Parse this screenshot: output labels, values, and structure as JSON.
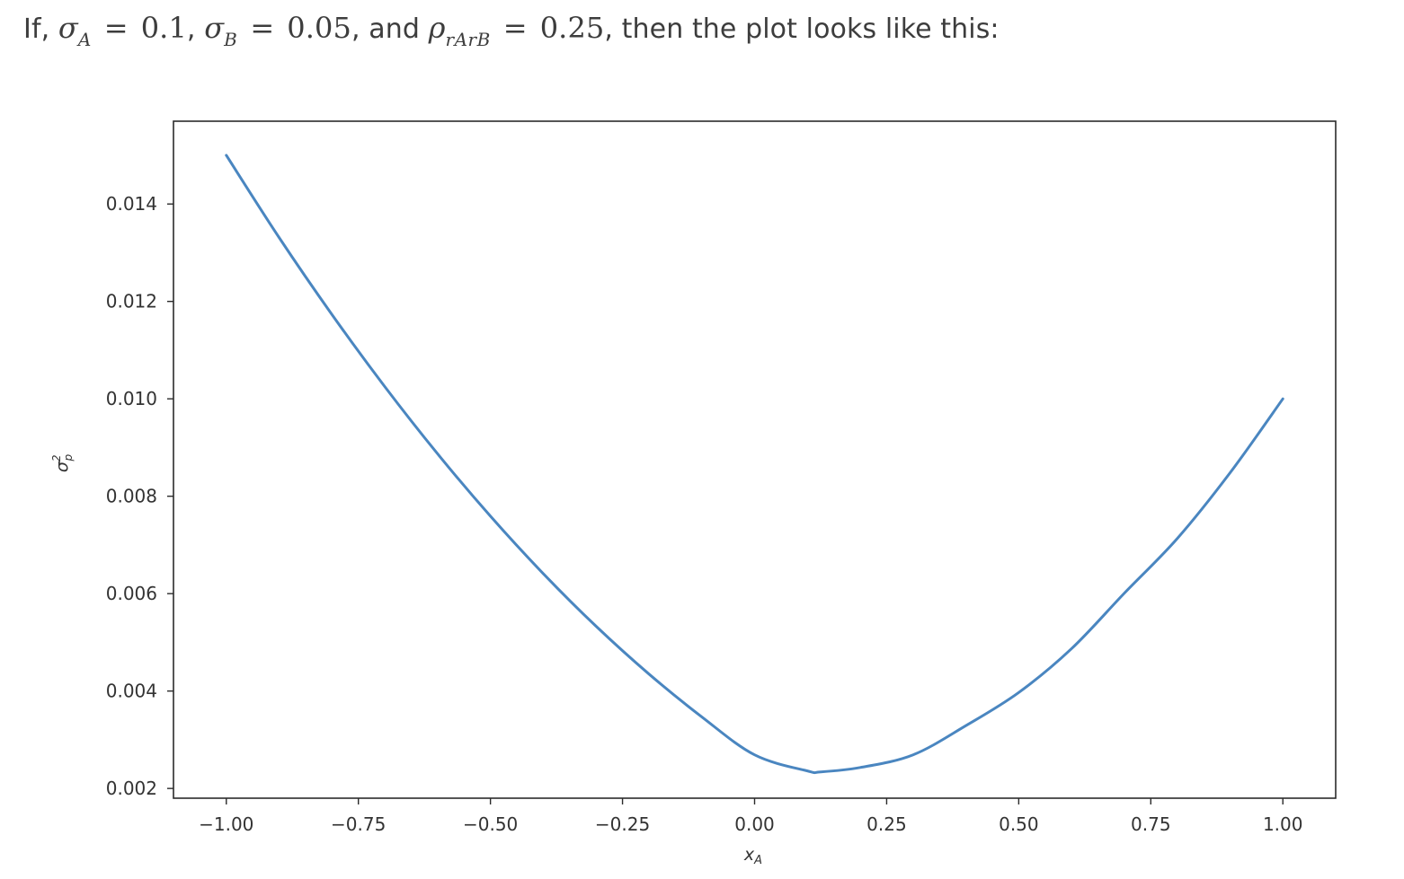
{
  "intro": {
    "lead": "If,",
    "sigma_a": {
      "symbol": "σ",
      "subscript": "A",
      "value": "0.1"
    },
    "sigma_b": {
      "symbol": "σ",
      "subscript": "B",
      "value": "0.05"
    },
    "connector": "and",
    "rho": {
      "symbol": "ρ",
      "subscript": "rArB",
      "value": "0.25"
    },
    "trail": "then the plot looks like this:",
    "separator": ",",
    "equals": "="
  },
  "chart_data": {
    "type": "line",
    "title": "",
    "xlabel": "x_A",
    "ylabel": "σ²_p",
    "xlabel_display": "xA",
    "ylabel_display": "σ²p",
    "xlim": [
      -1.1,
      1.1
    ],
    "ylim": [
      0.0018,
      0.0157
    ],
    "xticks": [
      -1.0,
      -0.75,
      -0.5,
      -0.25,
      0.0,
      0.25,
      0.5,
      0.75,
      1.0
    ],
    "xtick_labels": [
      "−1.00",
      "−0.75",
      "−0.50",
      "−0.25",
      "0.00",
      "0.25",
      "0.50",
      "0.75",
      "1.00"
    ],
    "yticks": [
      0.002,
      0.004,
      0.006,
      0.008,
      0.01,
      0.012,
      0.014
    ],
    "ytick_labels": [
      "0.002",
      "0.004",
      "0.006",
      "0.008",
      "0.010",
      "0.012",
      "0.014"
    ],
    "grid": false,
    "series": [
      {
        "color": "#4a86c0",
        "x": [
          -1.0,
          -0.9,
          -0.8,
          -0.7,
          -0.6,
          -0.5,
          -0.4,
          -0.3,
          -0.2,
          -0.1,
          0.0,
          0.1,
          0.125,
          0.2,
          0.3,
          0.4,
          0.5,
          0.6,
          0.7,
          0.8,
          0.9,
          1.0
        ],
        "y": [
          0.015,
          0.01331,
          0.01173,
          0.01025,
          0.00887,
          0.00759,
          0.00641,
          0.00533,
          0.00435,
          0.00347,
          0.00269,
          0.00236,
          0.00234,
          0.00243,
          0.00269,
          0.00329,
          0.00397,
          0.00487,
          0.00601,
          0.00713,
          0.00848,
          0.01
        ]
      }
    ]
  }
}
